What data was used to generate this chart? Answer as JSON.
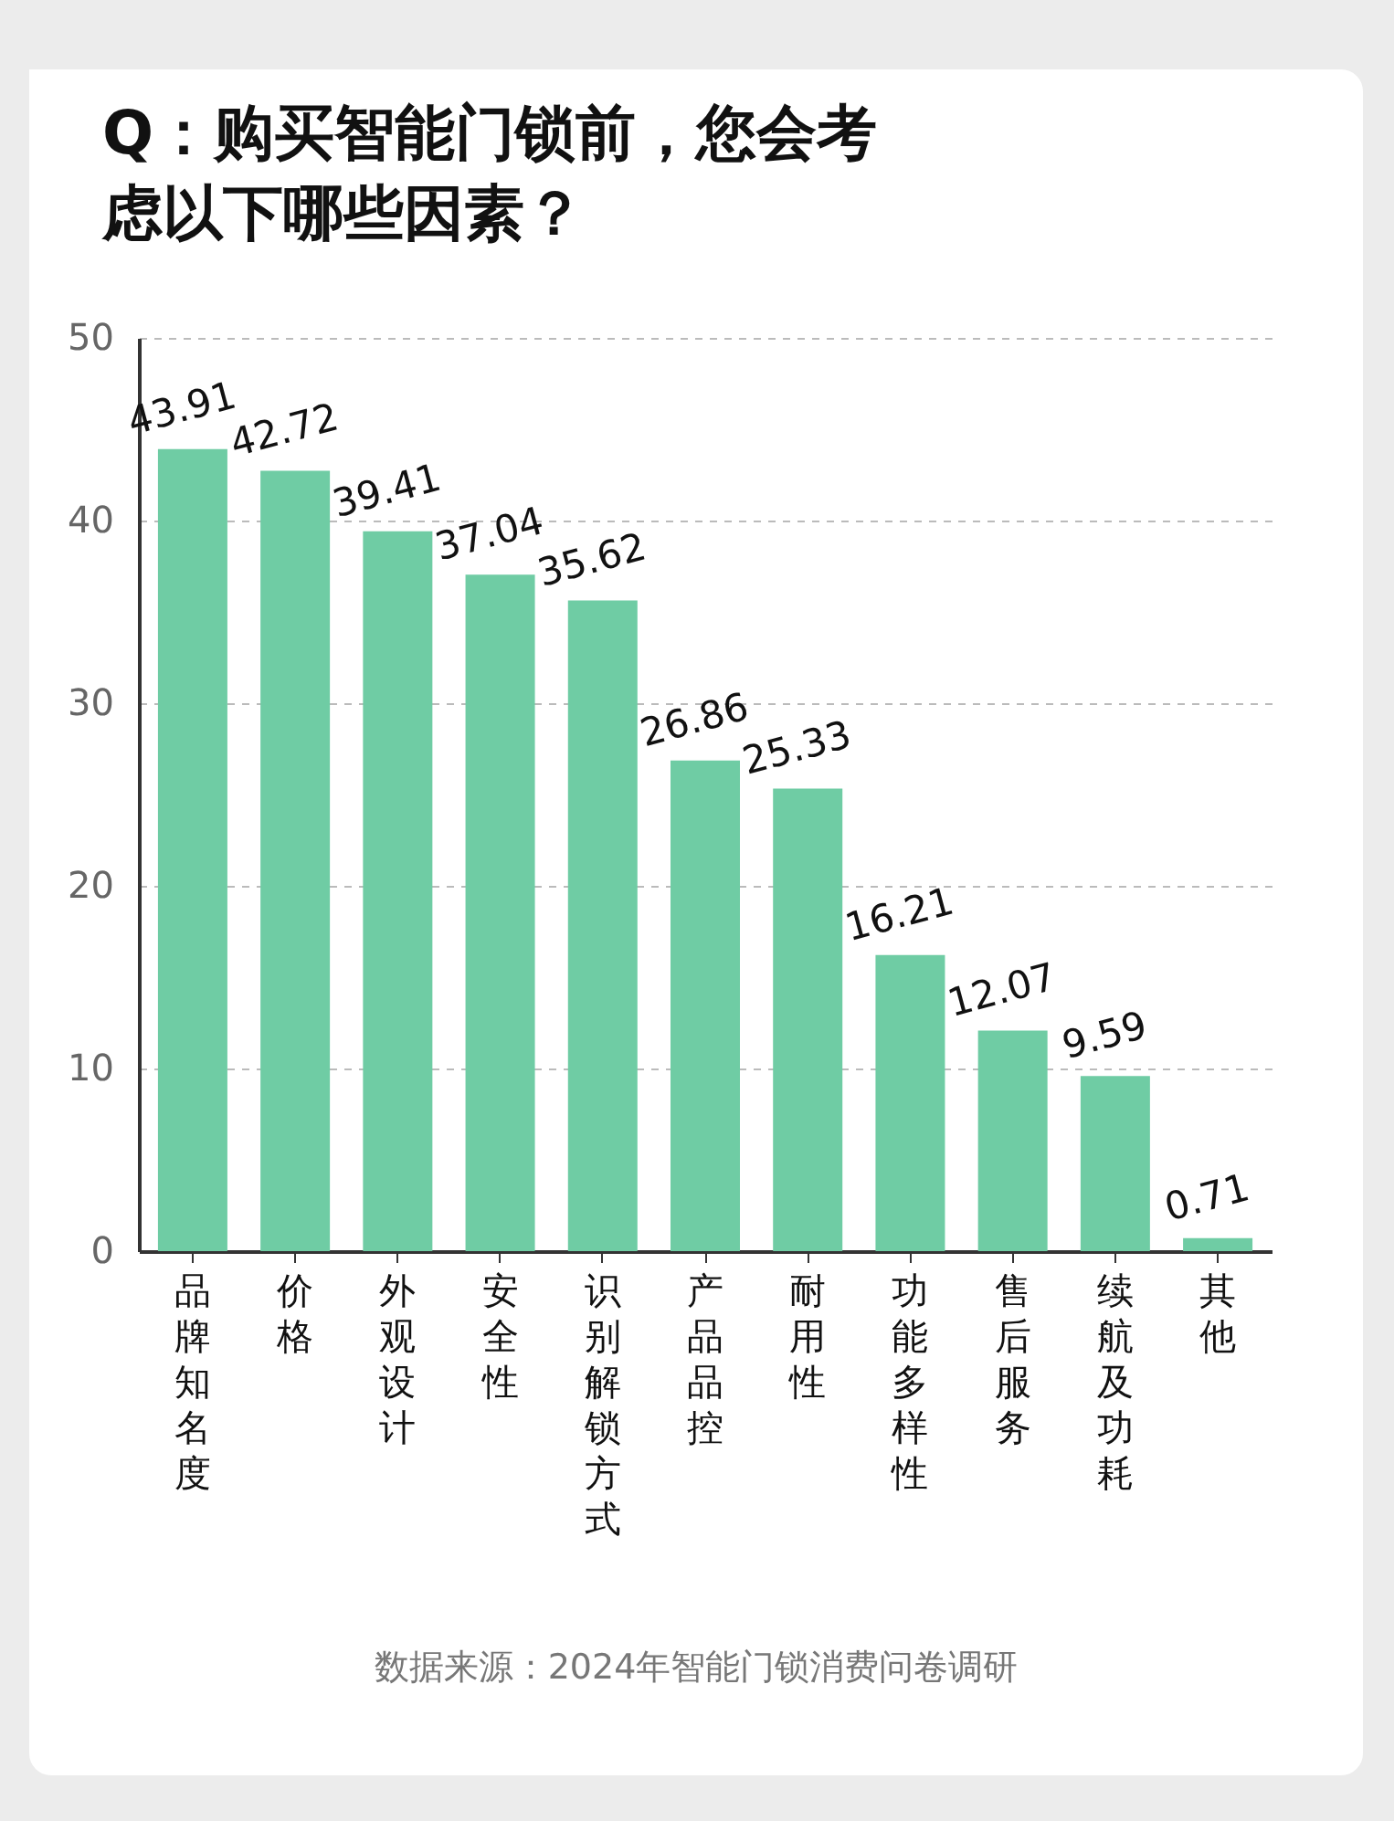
{
  "chart_data": {
    "type": "bar",
    "title": "Q：购买智能门锁前，您会考虑以下哪些因素？",
    "categories": [
      "品牌知名度",
      "价格",
      "外观设计",
      "安全性",
      "识别解锁方式",
      "产品品控",
      "耐用性",
      "功能多样性",
      "售后服务",
      "续航及功耗",
      "其他"
    ],
    "values": [
      43.91,
      42.72,
      39.41,
      37.04,
      35.62,
      26.86,
      25.33,
      16.21,
      12.07,
      9.59,
      0.71
    ],
    "color": "#6fcca4",
    "ylim": [
      0,
      50
    ],
    "yticks": [
      0,
      10,
      20,
      30,
      40,
      50
    ],
    "grid": "y",
    "data_labels": true,
    "annotations": [
      "数据来源：2024年智能门锁消费问卷调研"
    ]
  }
}
